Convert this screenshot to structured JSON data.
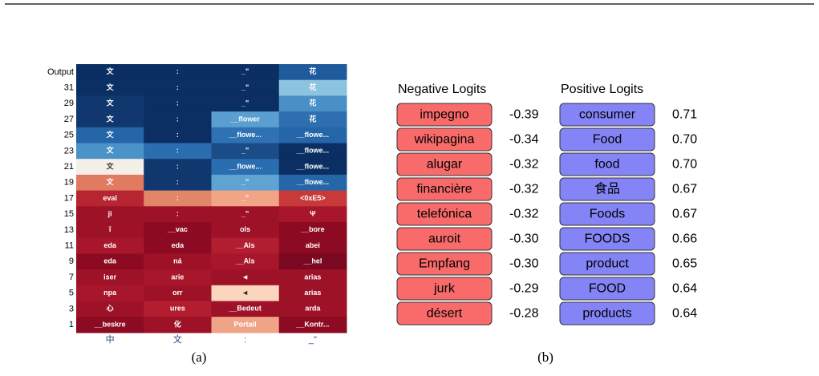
{
  "panel_a": {
    "caption": "(a)",
    "row_labels": [
      "Output",
      "31",
      "29",
      "27",
      "25",
      "23",
      "21",
      "19",
      "17",
      "15",
      "13",
      "11",
      "9",
      "7",
      "5",
      "3",
      "1"
    ],
    "column_labels": [
      "中",
      "文",
      ":",
      "_\""
    ],
    "rows": [
      [
        {
          "text": "文",
          "color": "#0b2f63"
        },
        {
          "text": ":",
          "color": "#0b2f63"
        },
        {
          "text": "_\"",
          "color": "#0b2f63"
        },
        {
          "text": "花",
          "color": "#1f5a9c"
        }
      ],
      [
        {
          "text": "文",
          "color": "#0b2f63"
        },
        {
          "text": ":",
          "color": "#0b2f63"
        },
        {
          "text": "_\"",
          "color": "#0b2f63"
        },
        {
          "text": "花",
          "color": "#8cc3df"
        }
      ],
      [
        {
          "text": "文",
          "color": "#11386e"
        },
        {
          "text": ":",
          "color": "#0b2f63"
        },
        {
          "text": "_\"",
          "color": "#0b2f63"
        },
        {
          "text": "花",
          "color": "#4a8fc6"
        }
      ],
      [
        {
          "text": "文",
          "color": "#11386e"
        },
        {
          "text": ":",
          "color": "#0b2f63"
        },
        {
          "text": "__flower",
          "color": "#5a9fd0"
        },
        {
          "text": "花",
          "color": "#2e6fb0"
        }
      ],
      [
        {
          "text": "文",
          "color": "#2466a8"
        },
        {
          "text": ":",
          "color": "#0b2f63"
        },
        {
          "text": "__flowe...",
          "color": "#2e72b3"
        },
        {
          "text": "__flowe...",
          "color": "#2466a8"
        }
      ],
      [
        {
          "text": "文",
          "color": "#4a92c8"
        },
        {
          "text": ":",
          "color": "#2a6db0"
        },
        {
          "text": "_\"",
          "color": "#1a4c88"
        },
        {
          "text": "__flowe...",
          "color": "#0b2f63"
        }
      ],
      [
        {
          "text": "文",
          "color": "#f5efe9"
        },
        {
          "text": ":",
          "color": "#11386e"
        },
        {
          "text": "__flowe...",
          "color": "#2a6db0"
        },
        {
          "text": "__flowe...",
          "color": "#0b2f63"
        }
      ],
      [
        {
          "text": "文",
          "color": "#e07a60"
        },
        {
          "text": ":",
          "color": "#11386e"
        },
        {
          "text": "_\"",
          "color": "#5ea3d1"
        },
        {
          "text": "__flowe...",
          "color": "#2466a8"
        }
      ],
      [
        {
          "text": "eval",
          "color": "#b82532"
        },
        {
          "text": ":",
          "color": "#e2866a"
        },
        {
          "text": "_\"",
          "color": "#f2a487"
        },
        {
          "text": "<0xE5>",
          "color": "#c83a3a"
        }
      ],
      [
        {
          "text": "ji",
          "color": "#9e1228"
        },
        {
          "text": ":",
          "color": "#9e1228"
        },
        {
          "text": "_\"",
          "color": "#9e1228"
        },
        {
          "text": "Ψ",
          "color": "#a8162b"
        }
      ],
      [
        {
          "text": "ĩ",
          "color": "#9e1228"
        },
        {
          "text": "__vac",
          "color": "#8d0b22"
        },
        {
          "text": "ols",
          "color": "#9e1228"
        },
        {
          "text": "__bore",
          "color": "#8d0b22"
        }
      ],
      [
        {
          "text": "eda",
          "color": "#a8162b"
        },
        {
          "text": "eda",
          "color": "#8d0b22"
        },
        {
          "text": "__Als",
          "color": "#b21d2f"
        },
        {
          "text": "abei",
          "color": "#8d0b22"
        }
      ],
      [
        {
          "text": "eda",
          "color": "#8d0b22"
        },
        {
          "text": "ná",
          "color": "#9e1228"
        },
        {
          "text": "__Als",
          "color": "#a8162b"
        },
        {
          "text": "__hel",
          "color": "#7a0820"
        }
      ],
      [
        {
          "text": "iser",
          "color": "#9e1228"
        },
        {
          "text": "arie",
          "color": "#a8162b"
        },
        {
          "text": "◄",
          "color": "#9e1228"
        },
        {
          "text": "arias",
          "color": "#9e1228"
        }
      ],
      [
        {
          "text": "npa",
          "color": "#a8162b"
        },
        {
          "text": "orr",
          "color": "#9e1228"
        },
        {
          "text": "◄",
          "color": "#fcd5bf"
        },
        {
          "text": "arias",
          "color": "#9e1228"
        }
      ],
      [
        {
          "text": "心",
          "color": "#9e1228"
        },
        {
          "text": "ures",
          "color": "#b21d2f"
        },
        {
          "text": "__Bedeut",
          "color": "#9e1228"
        },
        {
          "text": "arda",
          "color": "#9e1228"
        }
      ],
      [
        {
          "text": "__beskre",
          "color": "#8d0b22"
        },
        {
          "text": "化",
          "color": "#9e1228"
        },
        {
          "text": "Portail",
          "color": "#f0a487"
        },
        {
          "text": "__Kontr...",
          "color": "#8d0b22"
        }
      ]
    ]
  },
  "panel_b": {
    "caption": "(b)",
    "negative": {
      "title": "Negative Logits",
      "color": "#f96b6b",
      "items": [
        {
          "token": "impegno",
          "value": "-0.39"
        },
        {
          "token": "wikipagina",
          "value": "-0.34"
        },
        {
          "token": "alugar",
          "value": "-0.32"
        },
        {
          "token": "financière",
          "value": "-0.32"
        },
        {
          "token": "telefónica",
          "value": "-0.32"
        },
        {
          "token": "auroit",
          "value": "-0.30"
        },
        {
          "token": "Empfang",
          "value": "-0.30"
        },
        {
          "token": "jurk",
          "value": "-0.29"
        },
        {
          "token": "désert",
          "value": "-0.28"
        }
      ]
    },
    "positive": {
      "title": "Positive Logits",
      "color": "#8484f7",
      "items": [
        {
          "token": "consumer",
          "value": "0.71"
        },
        {
          "token": "Food",
          "value": "0.70"
        },
        {
          "token": "food",
          "value": "0.70"
        },
        {
          "token": "食品",
          "value": "0.67"
        },
        {
          "token": "Foods",
          "value": "0.67"
        },
        {
          "token": "FOODS",
          "value": "0.66"
        },
        {
          "token": "product",
          "value": "0.65"
        },
        {
          "token": "FOOD",
          "value": "0.64"
        },
        {
          "token": "products",
          "value": "0.64"
        }
      ]
    }
  }
}
